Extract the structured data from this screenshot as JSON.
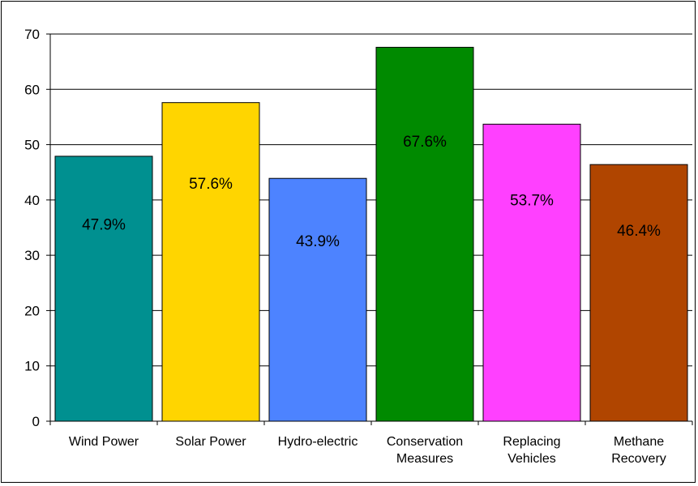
{
  "chart_data": {
    "type": "bar",
    "categories": [
      [
        "Wind Power"
      ],
      [
        "Solar Power"
      ],
      [
        "Hydro-electric"
      ],
      [
        "Conservation",
        "Measures"
      ],
      [
        "Replacing",
        "Vehicles"
      ],
      [
        "Methane",
        "Recovery"
      ]
    ],
    "values": [
      47.9,
      57.6,
      43.9,
      67.6,
      53.7,
      46.4
    ],
    "data_labels": [
      "47.9%",
      "57.6%",
      "43.9%",
      "67.6%",
      "53.7%",
      "46.4%"
    ],
    "colors": [
      "#009090",
      "#ffd500",
      "#4d83ff",
      "#008a00",
      "#ff40ff",
      "#b04500"
    ],
    "ylim": [
      0,
      70
    ],
    "yticks": [
      0,
      10,
      20,
      30,
      40,
      50,
      60,
      70
    ],
    "grid": true,
    "legend": "none"
  }
}
